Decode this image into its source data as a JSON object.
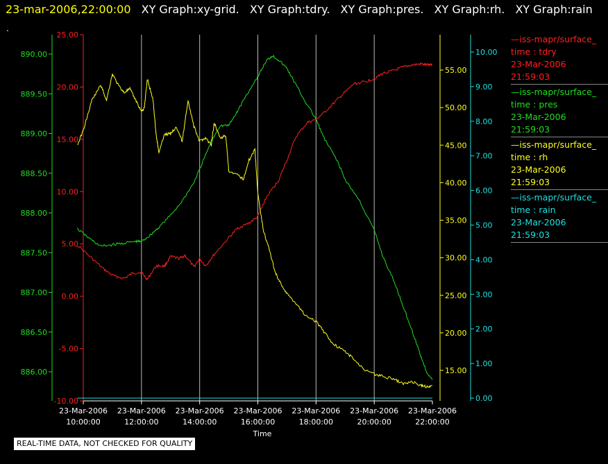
{
  "header": {
    "timestamp": "23-mar-2006,22:00:00",
    "graph_titles": [
      "XY Graph:xy-grid.",
      "XY Graph:tdry.",
      "XY Graph:pres.",
      "XY Graph:rh.",
      "XY Graph:rain"
    ]
  },
  "marker": ".",
  "disclaimer": "REAL-TIME DATA, NOT CHECKED FOR QUALITY",
  "colors": {
    "tdry": "#ff2020",
    "pres": "#20dd20",
    "rh": "#ffff20",
    "rain": "#20e0e0",
    "grid": "#bbbbbb",
    "axis_x": "#ffffff"
  },
  "legend": [
    {
      "line": "—iss-mapr/surface_",
      "var": "time : tdry",
      "date": "23-Mar-2006",
      "time": "21:59:03",
      "color": "#ff2020"
    },
    {
      "line": "—iss-mapr/surface_",
      "var": "time : pres",
      "date": "23-Mar-2006",
      "time": "21:59:03",
      "color": "#20dd20"
    },
    {
      "line": "—iss-mapr/surface_",
      "var": "time : rh",
      "date": "23-Mar-2006",
      "time": "21:59:03",
      "color": "#ffff20"
    },
    {
      "line": "—iss-mapr/surface_",
      "var": "time : rain",
      "date": "23-Mar-2006",
      "time": "21:59:03",
      "color": "#20e0e0"
    }
  ],
  "chart_data": {
    "type": "line",
    "xlabel": "Time",
    "x_ticks": [
      {
        "hour": 10,
        "date": "23-Mar-2006",
        "time": "10:00:00"
      },
      {
        "hour": 12,
        "date": "23-Mar-2006",
        "time": "12:00:00"
      },
      {
        "hour": 14,
        "date": "23-Mar-2006",
        "time": "14:00:00"
      },
      {
        "hour": 16,
        "date": "23-Mar-2006",
        "time": "16:00:00"
      },
      {
        "hour": 18,
        "date": "23-Mar-2006",
        "time": "18:00:00"
      },
      {
        "hour": 20,
        "date": "23-Mar-2006",
        "time": "20:00:00"
      },
      {
        "hour": 22,
        "date": "23-Mar-2006",
        "time": "22:00:00"
      }
    ],
    "x_range_hours": [
      9.8,
      22.0
    ],
    "grid": "vertical",
    "axes": {
      "tdry": {
        "range": [
          -10,
          25
        ],
        "ticks": [
          "-10.00",
          "-5.00",
          "0.00",
          "5.00",
          "10.00",
          "15.00",
          "20.00",
          "25.00"
        ],
        "side": "left-inner"
      },
      "pres": {
        "range": [
          885.7,
          890.2
        ],
        "ticks": [
          "886.00",
          "886.50",
          "887.00",
          "887.50",
          "888.00",
          "888.50",
          "889.00",
          "889.50",
          "890.00"
        ],
        "side": "left-outer"
      },
      "rh": {
        "range": [
          10.5,
          59.2
        ],
        "ticks": [
          "15.00",
          "20.00",
          "25.00",
          "30.00",
          "35.00",
          "40.00",
          "45.00",
          "50.00",
          "55.00"
        ],
        "side": "right-inner"
      },
      "rain": {
        "range": [
          -0.05,
          10.3
        ],
        "ticks": [
          "0.00",
          "1.00",
          "2.00",
          "3.00",
          "4.00",
          "5.00",
          "6.00",
          "7.00",
          "8.00",
          "9.00",
          "10.00"
        ],
        "side": "right-outer"
      }
    },
    "series": [
      {
        "key": "tdry",
        "x": [
          9.8,
          10.3,
          10.7,
          11.0,
          11.4,
          11.7,
          12.0,
          12.2,
          12.5,
          12.8,
          13.0,
          13.3,
          13.5,
          13.8,
          14.0,
          14.2,
          14.5,
          15.0,
          15.3,
          15.7,
          16.0,
          16.3,
          16.7,
          17.0,
          17.3,
          17.7,
          18.0,
          18.3,
          18.7,
          19.0,
          19.3,
          19.7,
          20.0,
          20.3,
          20.7,
          21.0,
          21.3,
          21.6,
          21.8,
          22.0
        ],
        "y": [
          4.9,
          3.6,
          2.6,
          2.0,
          1.7,
          2.2,
          2.3,
          1.6,
          2.9,
          2.9,
          3.8,
          3.6,
          3.9,
          2.8,
          3.6,
          2.9,
          4.0,
          5.6,
          6.5,
          7.0,
          7.6,
          9.5,
          11.0,
          13.0,
          15.2,
          16.6,
          16.9,
          17.6,
          18.7,
          19.5,
          20.3,
          20.5,
          20.8,
          21.3,
          21.6,
          21.9,
          22.1,
          22.2,
          22.1,
          22.2
        ]
      },
      {
        "key": "pres",
        "x": [
          9.8,
          10.2,
          10.6,
          11.0,
          11.4,
          11.8,
          12.0,
          12.3,
          12.6,
          13.0,
          13.4,
          13.8,
          14.0,
          14.4,
          14.7,
          15.0,
          15.3,
          15.6,
          16.0,
          16.3,
          16.5,
          16.7,
          17.0,
          17.3,
          17.6,
          18.0,
          18.3,
          18.7,
          19.0,
          19.5,
          20.0,
          20.3,
          20.7,
          21.0,
          21.3,
          21.6,
          21.8,
          22.0
        ],
        "y": [
          887.8,
          887.68,
          887.58,
          887.6,
          887.62,
          887.64,
          887.64,
          887.72,
          887.82,
          887.97,
          888.15,
          888.38,
          888.55,
          888.9,
          889.1,
          889.1,
          889.28,
          889.48,
          889.72,
          889.92,
          889.98,
          889.93,
          889.82,
          889.62,
          889.42,
          889.18,
          888.92,
          888.68,
          888.42,
          888.15,
          887.78,
          887.45,
          887.12,
          886.82,
          886.52,
          886.2,
          886.0,
          885.9
        ]
      },
      {
        "key": "rh",
        "x": [
          9.8,
          10.0,
          10.3,
          10.6,
          10.8,
          11.0,
          11.2,
          11.4,
          11.6,
          11.8,
          12.0,
          12.1,
          12.2,
          12.4,
          12.5,
          12.6,
          12.8,
          13.0,
          13.2,
          13.4,
          13.6,
          13.8,
          14.0,
          14.2,
          14.4,
          14.5,
          14.7,
          14.9,
          15.0,
          15.3,
          15.5,
          15.7,
          15.9,
          16.0,
          16.2,
          16.4,
          16.6,
          16.8,
          17.0,
          17.3,
          17.6,
          18.0,
          18.3,
          18.6,
          19.0,
          19.3,
          19.6,
          20.0,
          20.3,
          20.7,
          21.0,
          21.3,
          21.6,
          21.8,
          22.0
        ],
        "y": [
          45,
          47,
          51,
          53,
          51,
          54.5,
          53,
          52,
          52.5,
          51,
          49.5,
          50,
          53.8,
          51,
          46.5,
          44,
          46.5,
          46.5,
          47.5,
          45.5,
          51,
          47.5,
          45.5,
          46,
          45,
          48,
          46,
          46.2,
          41.5,
          41,
          40.5,
          43,
          44.5,
          38.5,
          33.5,
          31,
          28,
          26.5,
          25.2,
          24,
          22.5,
          21.5,
          20,
          18.5,
          17.5,
          16.5,
          15.3,
          14.5,
          14.2,
          13.8,
          13.2,
          13.5,
          13.0,
          12.8,
          13.0
        ]
      },
      {
        "key": "rain",
        "x": [
          9.8,
          22.0
        ],
        "y": [
          0.0,
          0.0
        ]
      }
    ]
  }
}
